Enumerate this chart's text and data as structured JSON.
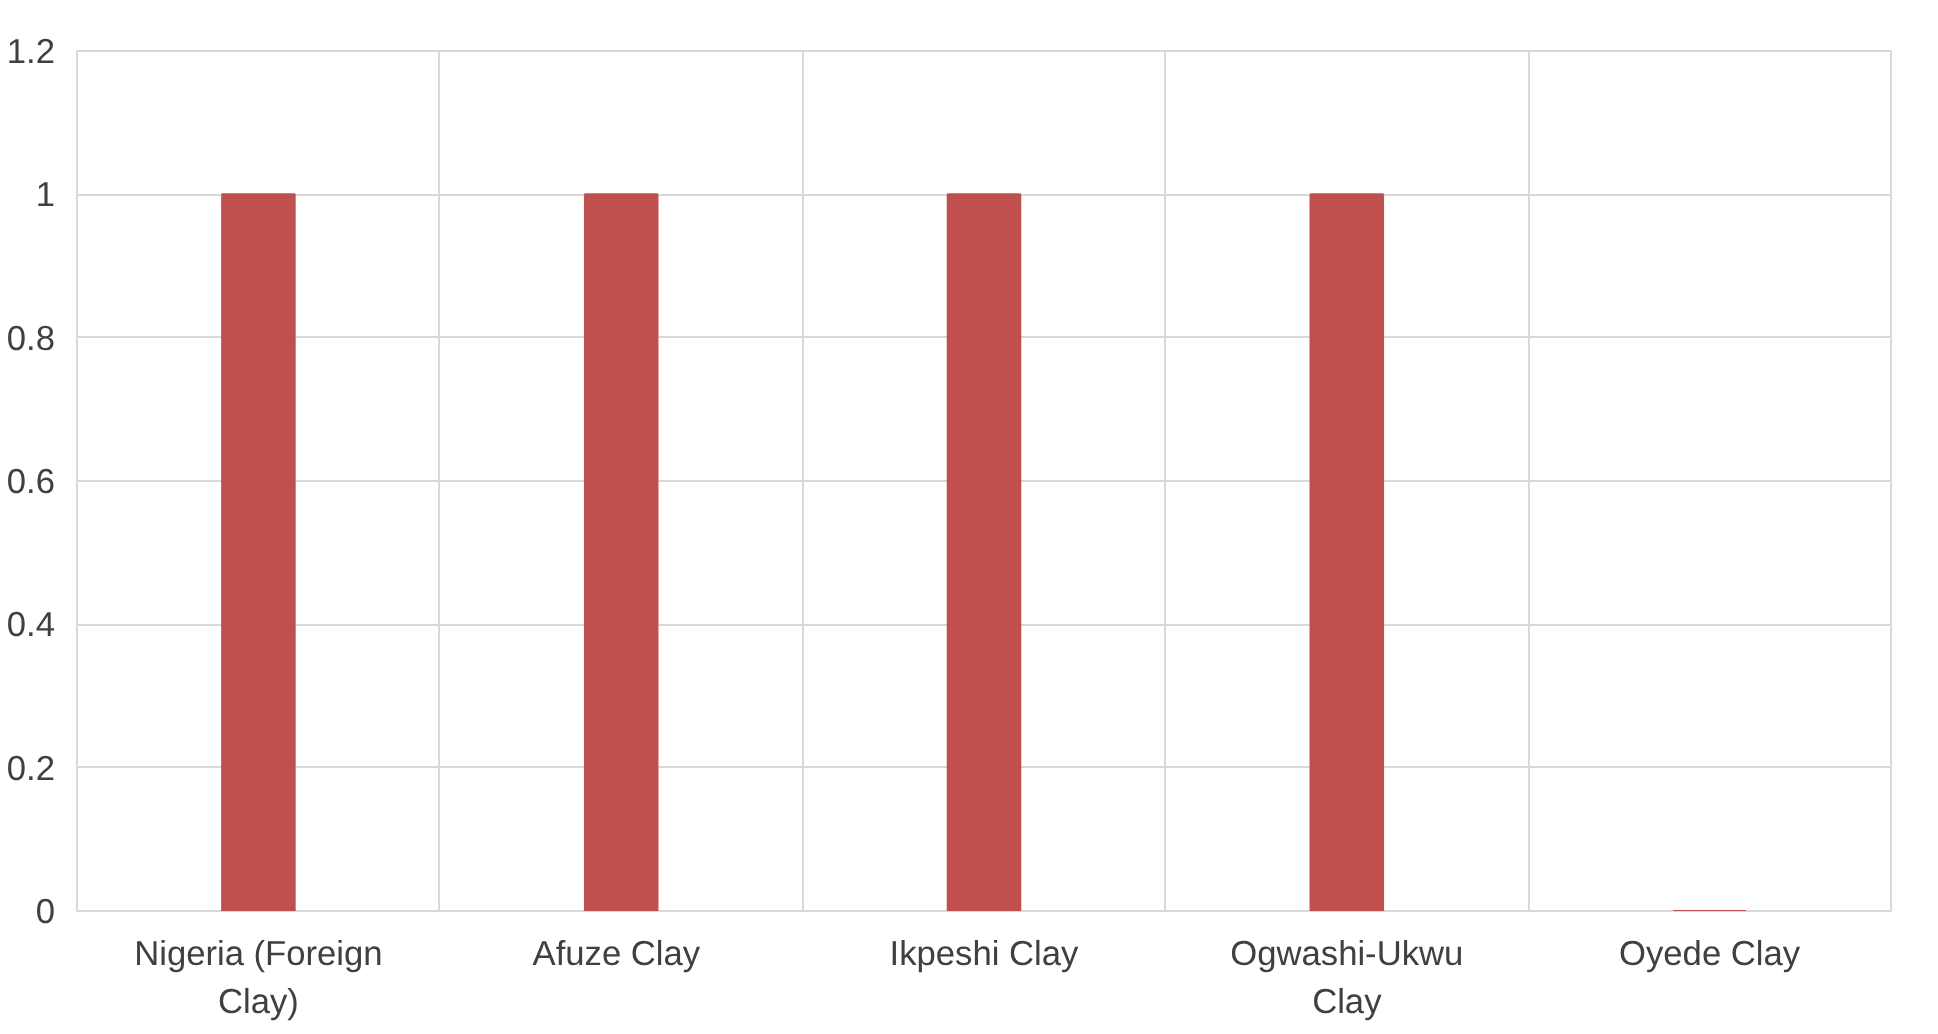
{
  "chart_data": {
    "type": "bar",
    "categories": [
      "Nigeria (Foreign Clay)",
      "Afuze  Clay",
      "Ikpeshi Clay",
      "Ogwashi-Ukwu Clay",
      "Oyede Clay"
    ],
    "values": [
      1,
      1,
      1,
      1,
      0
    ],
    "color": "#c0504d",
    "ylim": [
      0,
      1.2
    ],
    "yticks": [
      0,
      0.2,
      0.4,
      0.6,
      0.8,
      1,
      1.2
    ],
    "grid": true
  }
}
